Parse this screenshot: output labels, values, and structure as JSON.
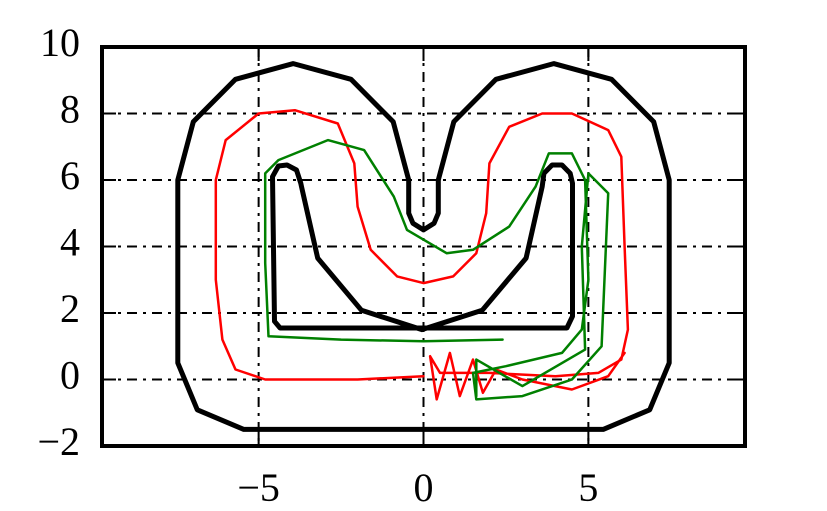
{
  "chart_data": {
    "type": "line",
    "xlim": [
      -9.75,
      9.75
    ],
    "ylim": [
      -2,
      10
    ],
    "xticks": [
      {
        "value": -5,
        "label": "−5"
      },
      0,
      5
    ],
    "yticks": [
      {
        "value": -2,
        "label": "−2"
      },
      0,
      2,
      4,
      6,
      8,
      10
    ],
    "grid": true,
    "series": [
      {
        "color": "#000000",
        "x": [
          -7.45,
          -6.98,
          -5.7,
          -3.95,
          -2.2,
          -0.92,
          -0.45,
          -0.45,
          -0.32,
          0,
          0.32,
          0.45,
          0.45,
          0.92,
          2.2,
          3.95,
          5.7,
          6.98,
          7.45,
          7.45,
          6.86,
          5.45,
          -5.45,
          -6.86,
          -7.45,
          -7.45
        ],
        "values": [
          6,
          7.75,
          9.03,
          9.5,
          9.03,
          7.75,
          6,
          5.0,
          4.7,
          4.5,
          4.7,
          5.0,
          6,
          7.75,
          9.03,
          9.5,
          9.03,
          7.75,
          6,
          0.5,
          -0.91,
          -1.5,
          -1.5,
          -0.91,
          0.5,
          6
        ]
      },
      {
        "color": "#000000",
        "x": [
          -4.58,
          -4.4,
          -4.14,
          -3.85,
          -3.72,
          -3.7,
          -3.21,
          -1.88,
          -0.05,
          1.78,
          3.11,
          3.6,
          3.65,
          3.9,
          4.2,
          4.45,
          4.52,
          4.52,
          4.35,
          -4.35,
          -4.52,
          -4.58
        ],
        "values": [
          6.1,
          6.42,
          6.45,
          6.3,
          5.9,
          5.8,
          3.65,
          2.08,
          1.5,
          2.08,
          3.65,
          5.8,
          6.2,
          6.45,
          6.45,
          6.2,
          5.9,
          1.9,
          1.55,
          1.55,
          1.75,
          6.1
        ]
      },
      {
        "color": "#ff0000",
        "x": [
          0,
          -2,
          -4.8,
          -5.7,
          -6.1,
          -6.3,
          -6.3,
          -6,
          -5,
          -3.9,
          -2.6,
          -2.1,
          -2.0,
          -1.6,
          -0.8,
          0,
          0.9,
          1.6,
          1.9,
          2.0,
          2.6,
          3.6,
          4.5,
          5.6,
          6.0,
          6.1,
          6.2,
          6.0,
          5.3,
          4,
          2,
          0.5,
          0.2,
          0.4,
          0.8,
          1.1,
          1.5,
          1.8,
          2.2,
          3,
          4.5,
          5.6,
          6.1
        ],
        "values": [
          0.1,
          0.0,
          0.0,
          0.3,
          1.2,
          3,
          6,
          7.2,
          8.0,
          8.1,
          7.7,
          6.5,
          5.2,
          3.9,
          3.1,
          2.9,
          3.1,
          3.8,
          5,
          6.5,
          7.6,
          8.0,
          8.0,
          7.5,
          6.7,
          4,
          1.5,
          0.6,
          0.2,
          0.1,
          0.2,
          0.2,
          0.7,
          -0.6,
          0.8,
          -0.5,
          0.6,
          -0.4,
          0.3,
          0,
          -0.3,
          0.1,
          0.8
        ]
      },
      {
        "color": "#008000",
        "x": [
          2.4,
          0,
          -2.5,
          -4.7,
          -4.8,
          -4.8,
          -4.4,
          -2.9,
          -1.8,
          -0.9,
          -0.5,
          0.7,
          1.5,
          2.6,
          3.4,
          3.8,
          4.5,
          4.9,
          5.0,
          4.8,
          4.2,
          2.5,
          1.5,
          1.6,
          3,
          4.5,
          5.4,
          5.6,
          5,
          4.8,
          4.9,
          3,
          1.6,
          1.6
        ],
        "values": [
          1.2,
          1.15,
          1.2,
          1.3,
          3.5,
          6.2,
          6.6,
          7.2,
          6.9,
          5.5,
          4.5,
          3.8,
          3.9,
          4.6,
          5.8,
          6.8,
          6.8,
          6,
          3,
          1.5,
          0.8,
          0.4,
          0.2,
          -0.6,
          -0.5,
          0,
          1,
          5.6,
          6.2,
          4,
          0.9,
          -0.2,
          0.6,
          -0.5
        ]
      }
    ]
  }
}
